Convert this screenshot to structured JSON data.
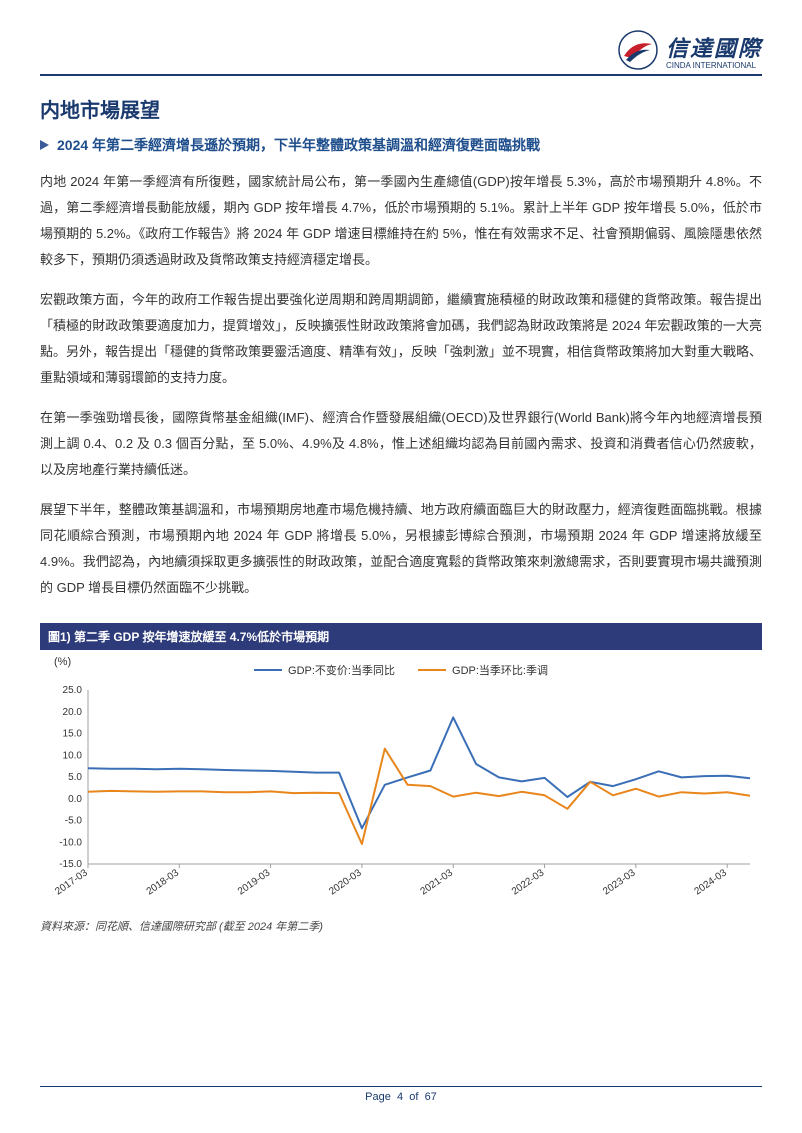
{
  "brand": {
    "name": "信達國際",
    "sub": "CINDA INTERNATIONAL",
    "border_color": "#1a3a6e"
  },
  "section_title": "内地市場展望",
  "sub_title": "2024 年第二季經濟增長遜於預期，下半年整體政策基調溫和經濟復甦面臨挑戰",
  "paragraphs": {
    "p1": "内地 2024 年第一季經濟有所復甦，國家統計局公布，第一季國內生產總值(GDP)按年增長 5.3%，高於市場預期升 4.8%。不過，第二季經濟增長動能放緩，期內 GDP 按年增長 4.7%，低於市場預期的 5.1%。累計上半年 GDP 按年增長 5.0%，低於市場預期的 5.2%。《政府工作報告》將 2024 年 GDP 增速目標維持在約 5%，惟在有效需求不足、社會預期偏弱、風險隱患依然較多下，預期仍須透過財政及貨幣政策支持經濟穩定增長。",
    "p2": "宏觀政策方面，今年的政府工作報告提出要強化逆周期和跨周期調節，繼續實施積極的財政政策和穩健的貨幣政策。報告提出「積極的財政政策要適度加力，提質增效」，反映擴張性財政政策將會加碼，我們認為財政政策將是 2024 年宏觀政策的一大亮點。另外，報告提出「穩健的貨幣政策要靈活適度、精準有效」，反映「強刺激」並不現實，相信貨幣政策將加大對重大戰略、重點領域和薄弱環節的支持力度。",
    "p3": "在第一季強勁增長後，國際貨幣基金組織(IMF)、經濟合作暨發展組織(OECD)及世界銀行(World Bank)將今年內地經濟增長預測上調 0.4、0.2 及 0.3 個百分點，至 5.0%、4.9%及 4.8%，惟上述組織均認為目前國內需求、投資和消費者信心仍然疲軟，以及房地產行業持續低迷。",
    "p4": "展望下半年，整體政策基調溫和，市場預期房地產市場危機持續、地方政府續面臨巨大的財政壓力，經濟復甦面臨挑戰。根據同花順綜合預測，市場預期內地 2024 年 GDP 將增長 5.0%，另根據彭博綜合預測，市場預期 2024 年 GDP 增速將放緩至 4.9%。我們認為，內地續須採取更多擴張性的財政政策，並配合適度寬鬆的貨幣政策來刺激總需求，否則要實現市場共識預測的 GDP 增長目標仍然面臨不少挑戰。"
  },
  "figure": {
    "title": "圖1) 第二季 GDP 按年增速放緩至 4.7%低於市場預期",
    "source": "資料來源：同花順、信達國際研究部 (截至 2024 年第二季)",
    "chart": {
      "type": "line",
      "ylabel": "(%)",
      "ylim": [
        -15,
        25
      ],
      "ytick_step": 5,
      "yticks": [
        -15,
        -10,
        -5,
        0,
        5,
        10,
        15,
        20,
        25
      ],
      "x_categories": [
        "2017-03",
        "2017-06",
        "2017-09",
        "2017-12",
        "2018-03",
        "2018-06",
        "2018-09",
        "2018-12",
        "2019-03",
        "2019-06",
        "2019-09",
        "2019-12",
        "2020-03",
        "2020-06",
        "2020-09",
        "2020-12",
        "2021-03",
        "2021-06",
        "2021-09",
        "2021-12",
        "2022-03",
        "2022-06",
        "2022-09",
        "2022-12",
        "2023-03",
        "2023-06",
        "2023-09",
        "2023-12",
        "2024-03",
        "2024-06"
      ],
      "x_label_indices": [
        0,
        4,
        8,
        12,
        16,
        20,
        24,
        28
      ],
      "series": [
        {
          "name": "GDP:不变价:当季同比",
          "color": "#3a6fb7",
          "values": [
            7.0,
            6.9,
            6.9,
            6.8,
            6.9,
            6.8,
            6.6,
            6.5,
            6.4,
            6.2,
            6.0,
            6.0,
            -6.8,
            3.2,
            4.9,
            6.5,
            18.7,
            8.0,
            4.9,
            4.0,
            4.8,
            0.4,
            3.9,
            2.9,
            4.5,
            6.3,
            4.9,
            5.2,
            5.3,
            4.7
          ]
        },
        {
          "name": "GDP:当季环比:季调",
          "color": "#e8861c",
          "values": [
            1.6,
            1.8,
            1.7,
            1.6,
            1.7,
            1.7,
            1.5,
            1.5,
            1.7,
            1.3,
            1.4,
            1.3,
            -10.4,
            11.5,
            3.2,
            2.9,
            0.5,
            1.4,
            0.6,
            1.6,
            0.8,
            -2.3,
            3.9,
            0.8,
            2.3,
            0.5,
            1.5,
            1.2,
            1.5,
            0.7
          ]
        }
      ],
      "background_color": "#ffffff",
      "grid": false,
      "axis_color": "#9aa0a6",
      "label_fontsize": 10,
      "line_width": 2,
      "marker": "none"
    }
  },
  "footer": {
    "page_label": "Page",
    "page_num": "4",
    "of_label": "of",
    "total": "67"
  }
}
